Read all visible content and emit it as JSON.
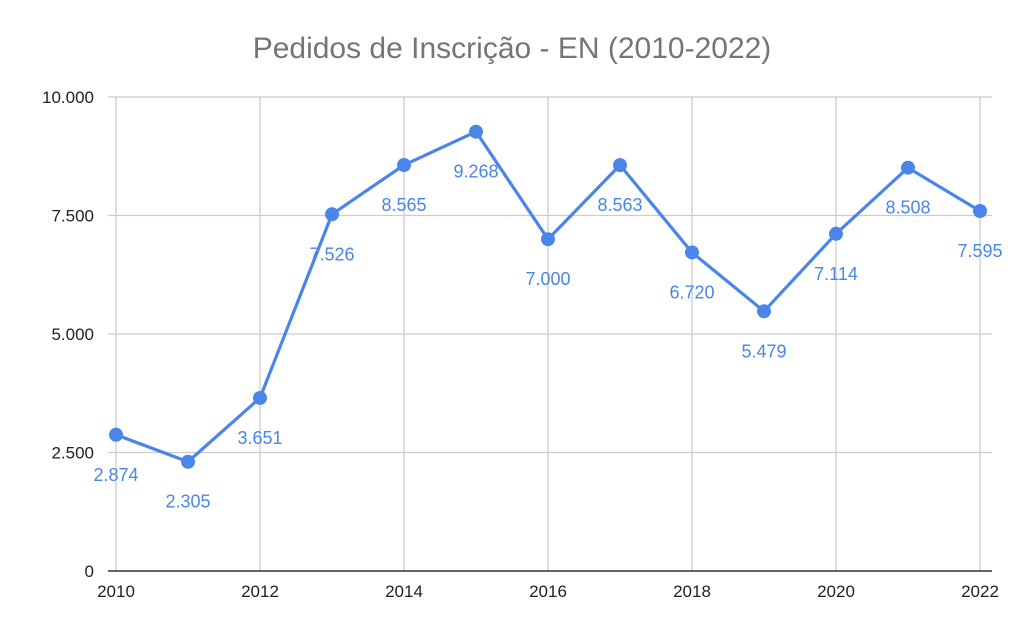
{
  "chart_data": {
    "type": "line",
    "title": "Pedidos de Inscrição - EN (2010-2022)",
    "x": [
      2010,
      2011,
      2012,
      2013,
      2014,
      2015,
      2016,
      2017,
      2018,
      2019,
      2020,
      2021,
      2022
    ],
    "series": [
      {
        "values": [
          2874,
          2305,
          3651,
          7526,
          8565,
          9268,
          7000,
          8563,
          6720,
          5479,
          7114,
          8508,
          7595
        ],
        "labels": [
          "2.874",
          "2.305",
          "3.651",
          "7.526",
          "8.565",
          "9.268",
          "7.000",
          "8.563",
          "6.720",
          "5.479",
          "7.114",
          "8.508",
          "7.595"
        ],
        "color": "#4a86e8"
      }
    ],
    "x_ticks": [
      "2010",
      "2012",
      "2014",
      "2016",
      "2018",
      "2020",
      "2022"
    ],
    "y_ticks": [
      "0",
      "2.500",
      "5.000",
      "7.500",
      "10.000"
    ],
    "ylim": [
      0,
      10000
    ],
    "xlim": [
      2010,
      2022
    ],
    "grid": true,
    "legend": "none"
  }
}
